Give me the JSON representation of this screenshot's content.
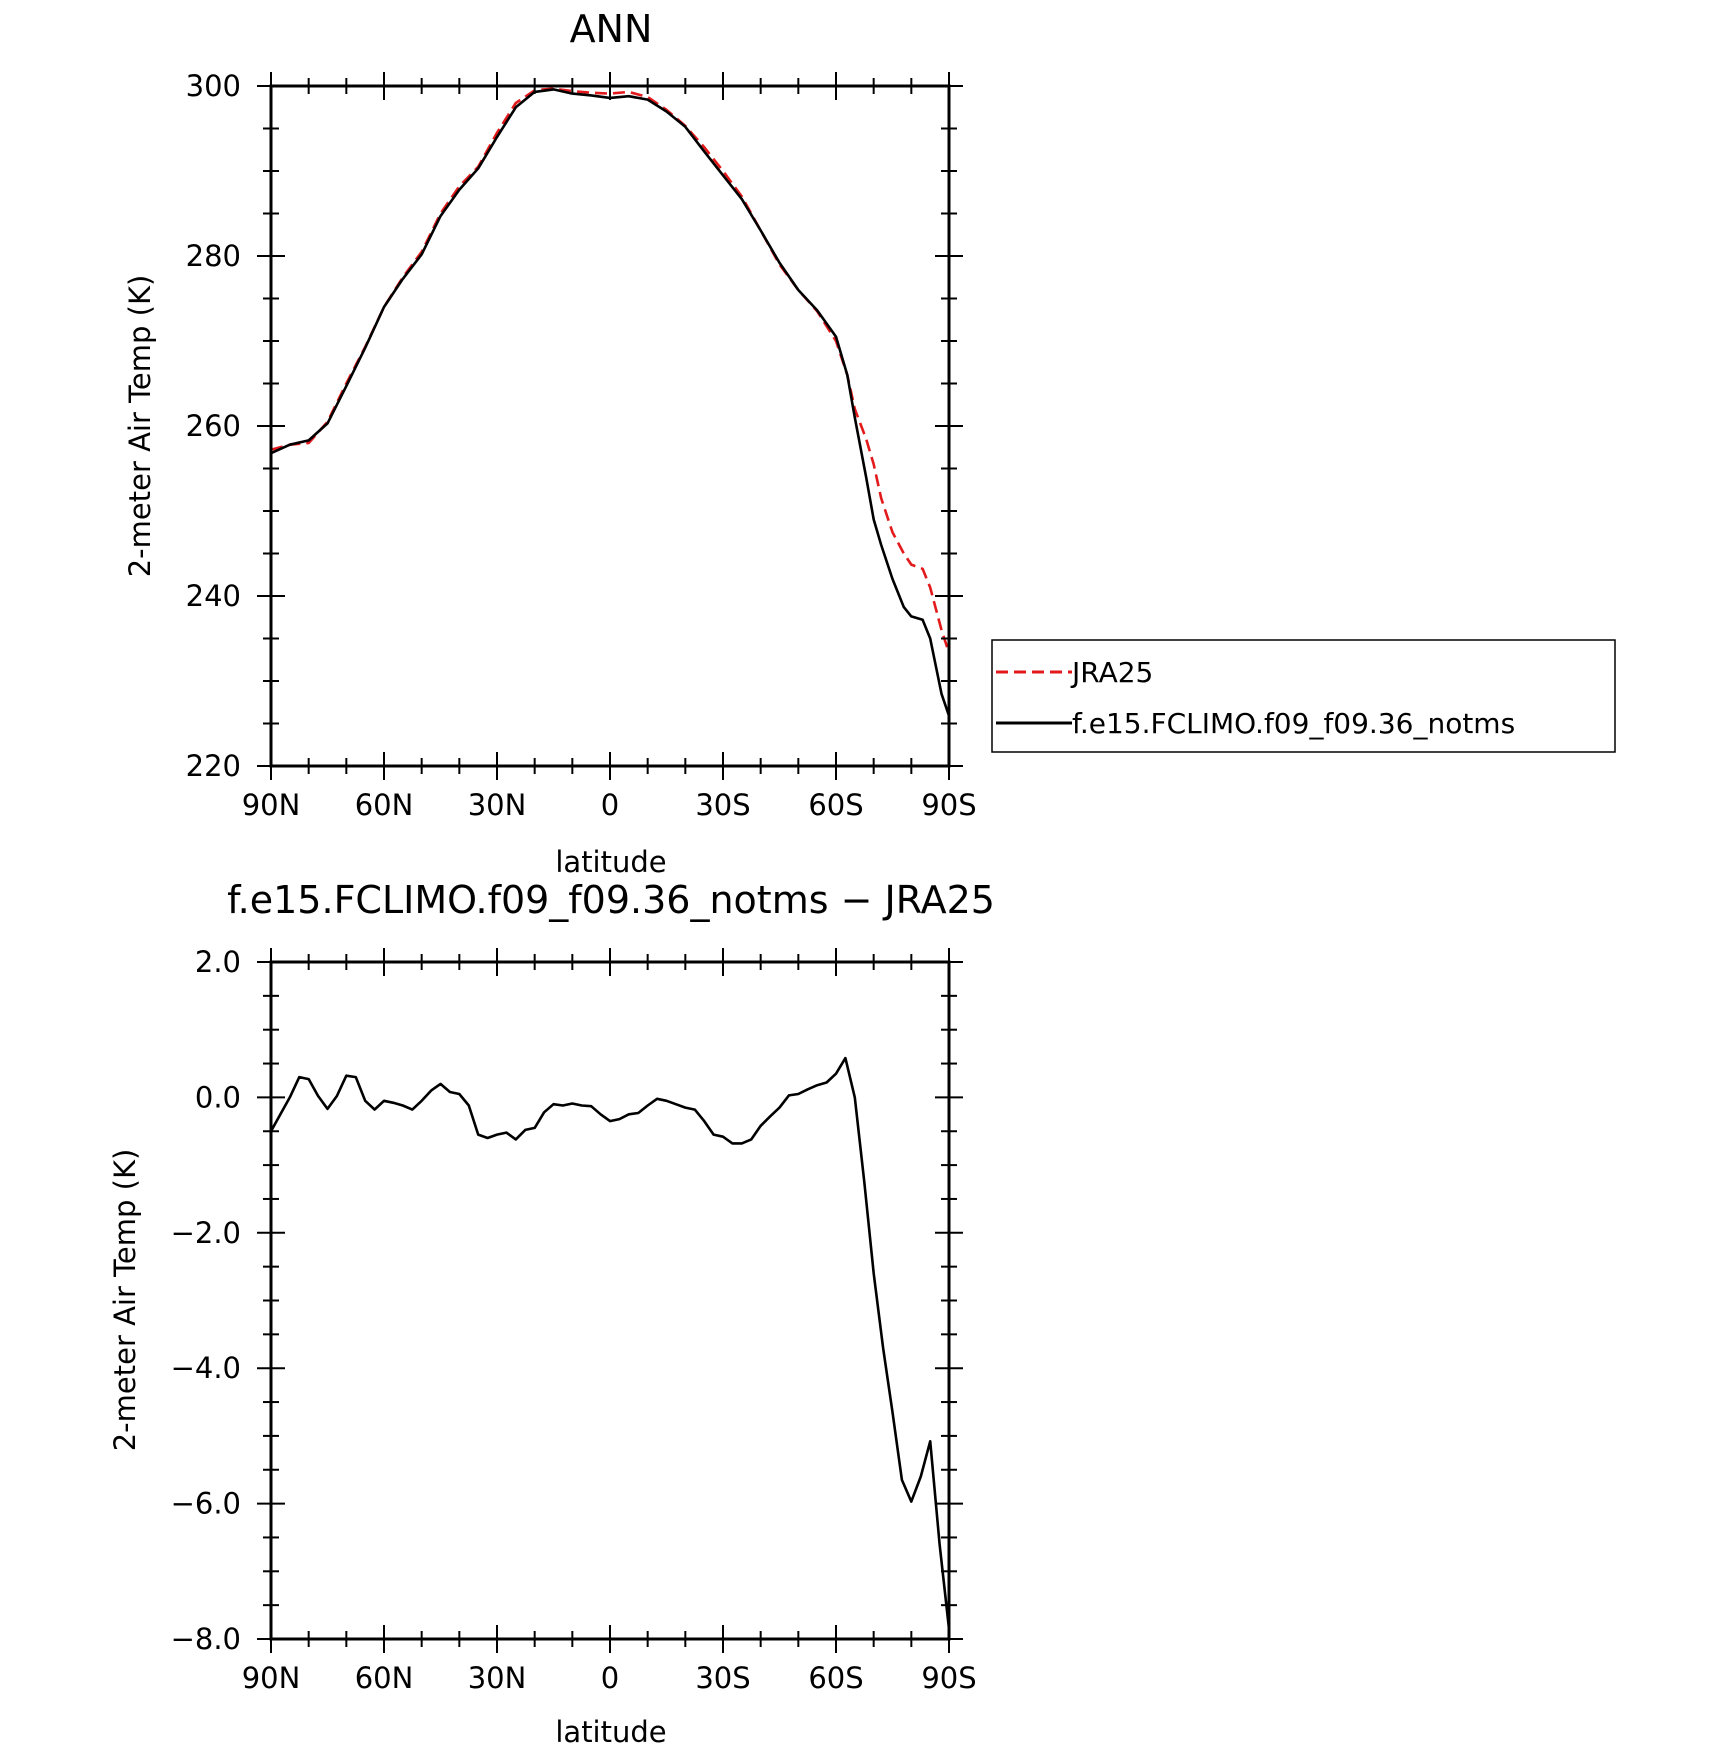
{
  "chart_data": [
    {
      "type": "line",
      "title": "ANN",
      "xlabel": "latitude",
      "ylabel": "2-meter Air Temp (K)",
      "xlim": [
        90,
        -90
      ],
      "ylim": [
        220,
        300
      ],
      "x_ticks": [
        {
          "value": 90,
          "label": "90N"
        },
        {
          "value": 60,
          "label": "60N"
        },
        {
          "value": 30,
          "label": "30N"
        },
        {
          "value": 0,
          "label": "0"
        },
        {
          "value": -30,
          "label": "30S"
        },
        {
          "value": -60,
          "label": "60S"
        },
        {
          "value": -90,
          "label": "90S"
        }
      ],
      "y_ticks": [
        {
          "value": 300,
          "label": "300"
        },
        {
          "value": 280,
          "label": "280"
        },
        {
          "value": 260,
          "label": "260"
        },
        {
          "value": 240,
          "label": "240"
        },
        {
          "value": 220,
          "label": "220"
        }
      ],
      "legend": {
        "position": "right"
      },
      "series": [
        {
          "name": "JRA25",
          "color": "#e31a1c",
          "dash": true,
          "x": [
            90,
            85,
            80,
            75,
            70,
            65,
            60,
            55,
            50,
            45,
            40,
            35,
            30,
            25,
            20,
            15,
            10,
            5,
            0,
            -5,
            -10,
            -15,
            -20,
            -25,
            -30,
            -35,
            -40,
            -45,
            -50,
            -55,
            -60,
            -63,
            -65,
            -68,
            -70,
            -72,
            -75,
            -78,
            -80,
            -83,
            -85,
            -88,
            -90
          ],
          "y": [
            257.2,
            257.8,
            258.0,
            260.5,
            265.0,
            269.3,
            274.0,
            277.5,
            280.5,
            285.0,
            288.2,
            290.5,
            294.5,
            298.0,
            299.5,
            299.7,
            299.4,
            299.2,
            299.1,
            299.3,
            298.7,
            297.2,
            295.3,
            292.8,
            290.0,
            287.0,
            283.0,
            279.0,
            276.0,
            273.5,
            270.0,
            266.0,
            262.0,
            258.5,
            255.5,
            251.5,
            247.5,
            245.0,
            243.7,
            243.2,
            241.0,
            236.0,
            233.3
          ]
        },
        {
          "name": "f.e15.FCLIMO.f09_f09.36_notms",
          "color": "#000000",
          "dash": false,
          "x": [
            90,
            85,
            80,
            75,
            70,
            65,
            60,
            55,
            50,
            45,
            40,
            35,
            30,
            25,
            20,
            15,
            10,
            5,
            0,
            -5,
            -10,
            -15,
            -20,
            -25,
            -30,
            -35,
            -40,
            -45,
            -50,
            -55,
            -60,
            -63,
            -65,
            -68,
            -70,
            -72,
            -75,
            -78,
            -80,
            -83,
            -85,
            -88,
            -90
          ],
          "y": [
            256.8,
            257.8,
            258.3,
            260.3,
            264.7,
            269.2,
            274.0,
            277.3,
            280.2,
            284.7,
            287.8,
            290.3,
            294.0,
            297.5,
            299.3,
            299.6,
            299.1,
            298.9,
            298.6,
            298.8,
            298.4,
            297.0,
            295.2,
            292.3,
            289.5,
            286.7,
            283.0,
            279.2,
            276.0,
            273.6,
            270.5,
            266.0,
            261.0,
            254.0,
            249.0,
            246.0,
            242.0,
            238.7,
            237.6,
            237.2,
            235.0,
            228.5,
            225.9
          ]
        }
      ]
    },
    {
      "type": "line",
      "title": "f.e15.FCLIMO.f09_f09.36_notms − JRA25",
      "xlabel": "latitude",
      "ylabel": "2-meter Air Temp (K)",
      "xlim": [
        90,
        -90
      ],
      "ylim": [
        -8.0,
        2.0
      ],
      "x_ticks": [
        {
          "value": 90,
          "label": "90N"
        },
        {
          "value": 60,
          "label": "60N"
        },
        {
          "value": 30,
          "label": "30N"
        },
        {
          "value": 0,
          "label": "0"
        },
        {
          "value": -30,
          "label": "30S"
        },
        {
          "value": -60,
          "label": "60S"
        },
        {
          "value": -90,
          "label": "90S"
        }
      ],
      "y_ticks": [
        {
          "value": 2.0,
          "label": "2.0"
        },
        {
          "value": 0.0,
          "label": "0.0"
        },
        {
          "value": -2.0,
          "label": "−2.0"
        },
        {
          "value": -4.0,
          "label": "−4.0"
        },
        {
          "value": -6.0,
          "label": "−6.0"
        },
        {
          "value": -8.0,
          "label": "−8.0"
        }
      ],
      "series": [
        {
          "color": "#000000",
          "dash": false,
          "x": [
            90,
            87.5,
            85,
            82.5,
            80,
            77.5,
            75,
            72.5,
            70,
            67.5,
            65,
            62.5,
            60,
            57.5,
            55,
            52.5,
            50,
            47.5,
            45,
            42.5,
            40,
            37.5,
            35,
            32.5,
            30,
            27.5,
            25,
            22.5,
            20,
            17.5,
            15,
            12.5,
            10,
            7.5,
            5,
            2.5,
            0,
            -2.5,
            -5,
            -7.5,
            -10,
            -12.5,
            -15,
            -17.5,
            -20,
            -22.5,
            -25,
            -27.5,
            -30,
            -32.5,
            -35,
            -37.5,
            -40,
            -42.5,
            -45,
            -47.5,
            -50,
            -52.5,
            -55,
            -57.5,
            -60,
            -62.5,
            -65,
            -67.5,
            -70,
            -72.5,
            -75,
            -77.5,
            -80,
            -82.5,
            -85,
            -87.5,
            -90
          ],
          "y": [
            -0.5,
            -0.25,
            0.0,
            0.3,
            0.27,
            0.02,
            -0.17,
            0.02,
            0.32,
            0.3,
            -0.05,
            -0.18,
            -0.05,
            -0.08,
            -0.12,
            -0.18,
            -0.05,
            0.1,
            0.2,
            0.08,
            0.05,
            -0.12,
            -0.55,
            -0.6,
            -0.55,
            -0.52,
            -0.62,
            -0.48,
            -0.45,
            -0.22,
            -0.1,
            -0.12,
            -0.09,
            -0.12,
            -0.13,
            -0.25,
            -0.35,
            -0.32,
            -0.25,
            -0.23,
            -0.12,
            -0.02,
            -0.05,
            -0.1,
            -0.15,
            -0.18,
            -0.35,
            -0.55,
            -0.58,
            -0.68,
            -0.68,
            -0.62,
            -0.42,
            -0.28,
            -0.15,
            0.03,
            0.05,
            0.12,
            0.18,
            0.22,
            0.35,
            0.58,
            0.0,
            -1.25,
            -2.6,
            -3.7,
            -4.65,
            -5.65,
            -5.97,
            -5.6,
            -5.08,
            -6.6,
            -7.85
          ]
        }
      ]
    }
  ]
}
